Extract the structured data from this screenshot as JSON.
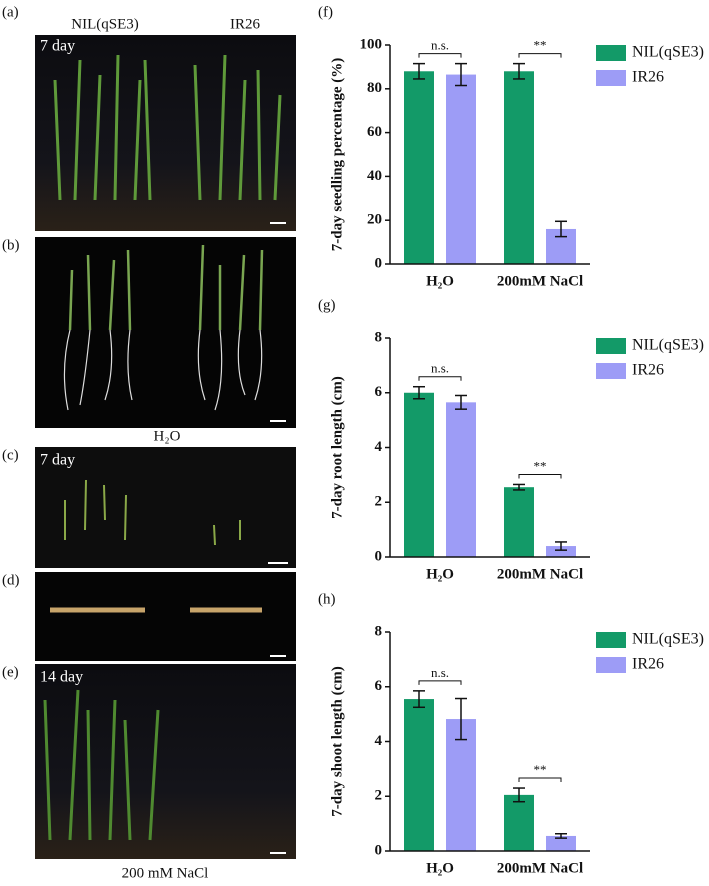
{
  "photos": {
    "a": {
      "label": "(a)",
      "left": "NIL(qSE3)",
      "right": "IR26",
      "note": "7 day"
    },
    "b": {
      "label": "(b)"
    },
    "water": "H₂O",
    "c": {
      "label": "(c)",
      "note": "7 day"
    },
    "d": {
      "label": "(d)"
    },
    "e": {
      "label": "(e)",
      "note": "14 day"
    },
    "salt": "200 mM NaCl"
  },
  "chart_data": [
    {
      "type": "bar",
      "label": "(f)",
      "y_label": "7-day seedling percentage (%)",
      "categories": [
        "H₂O",
        "200mM NaCl"
      ],
      "series": [
        {
          "name": "NIL(qSE3)",
          "color": "#139a68",
          "values": [
            88,
            88
          ],
          "errors": [
            3.5,
            3.5
          ]
        },
        {
          "name": "IR26",
          "color": "#9d9cf6",
          "values": [
            86.5,
            16
          ],
          "errors": [
            5,
            3.5
          ]
        }
      ],
      "annotations": [
        "n.s.",
        "**"
      ],
      "ylim": [
        0,
        100
      ],
      "yticks": [
        0,
        20,
        40,
        60,
        80,
        100
      ]
    },
    {
      "type": "bar",
      "label": "(g)",
      "y_label": "7-day root length (cm)",
      "categories": [
        "H₂O",
        "200mM NaCl"
      ],
      "series": [
        {
          "name": "NIL(qSE3)",
          "color": "#139a68",
          "values": [
            6.0,
            2.55
          ],
          "errors": [
            0.22,
            0.1
          ]
        },
        {
          "name": "IR26",
          "color": "#9d9cf6",
          "values": [
            5.65,
            0.4
          ],
          "errors": [
            0.25,
            0.15
          ]
        }
      ],
      "annotations": [
        "n.s.",
        "**"
      ],
      "ylim": [
        0,
        8
      ],
      "yticks": [
        0,
        2,
        4,
        6,
        8
      ]
    },
    {
      "type": "bar",
      "label": "(h)",
      "y_label": "7-day shoot length (cm)",
      "categories": [
        "H₂O",
        "200mM NaCl"
      ],
      "series": [
        {
          "name": "NIL(qSE3)",
          "color": "#139a68",
          "values": [
            5.55,
            2.05
          ],
          "errors": [
            0.3,
            0.25
          ]
        },
        {
          "name": "IR26",
          "color": "#9d9cf6",
          "values": [
            4.82,
            0.55
          ],
          "errors": [
            0.75,
            0.08
          ]
        }
      ],
      "annotations": [
        "n.s.",
        "**"
      ],
      "ylim": [
        0,
        8
      ],
      "yticks": [
        0,
        2,
        4,
        6,
        8
      ]
    }
  ]
}
